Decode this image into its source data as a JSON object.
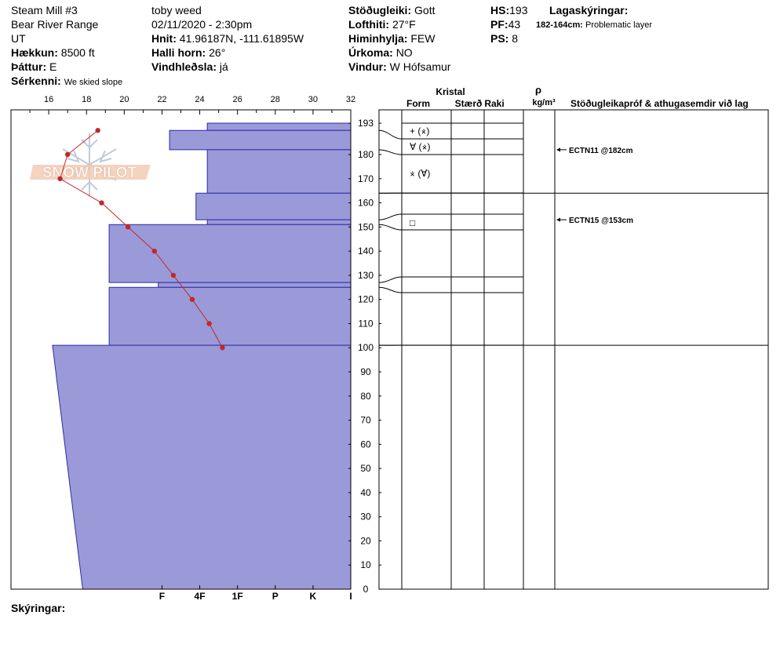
{
  "header": {
    "location": "Steam Mill #3",
    "range": "Bear River Range",
    "state": "UT",
    "elevation_label": "Hækkun:",
    "elevation": "8500 ft",
    "aspect_label": "Þáttur:",
    "aspect": "E",
    "features_label": "Sérkenni:",
    "features": "We skied slope",
    "observer": "toby weed",
    "datetime": "02/11/2020 - 2:30pm",
    "coords_label": "Hnit:",
    "coords": "41.96187N, -111.61895W",
    "slope_label": "Halli horn:",
    "slope": "26°",
    "wind_loading_label": "Vindhleðsla:",
    "wind_loading": "já",
    "stability_label": "Stöðugleiki:",
    "stability": "Gott",
    "air_temp_label": "Lofthiti:",
    "air_temp": "27°F",
    "sky_label": "Himinhylja:",
    "sky": "FEW",
    "precip_label": "Úrkoma:",
    "precip": "NO",
    "wind_label": "Vindur:",
    "wind": "W Hófsamur",
    "hs_label": "HS:",
    "hs": "193",
    "pf_label": "PF:",
    "pf": "43",
    "ps_label": "PS:",
    "ps": "8",
    "layers_label": "Lagaskýringar:",
    "layer_note_range": "182-164cm:",
    "layer_note_text": "Problematic layer"
  },
  "watermark": "SNOW PILOT",
  "footer": {
    "notes_label": "Skýringar:"
  },
  "columns": {
    "crystal": "Kristal",
    "form": "Form",
    "size": "Stærð",
    "moisture": "Raki",
    "rho": "ρ",
    "density_unit": "kg/m³",
    "tests": "Stöðugleikapróf & athugasemdir við lag"
  },
  "chart_data": {
    "type": "snow-profile",
    "height_axis": {
      "min": 0,
      "max": 193,
      "ticks": [
        0,
        10,
        20,
        30,
        40,
        50,
        60,
        70,
        80,
        90,
        100,
        110,
        120,
        130,
        140,
        150,
        160,
        170,
        180,
        193
      ]
    },
    "temperature_axis": {
      "min": 14,
      "max": 32,
      "ticks": [
        16,
        18,
        20,
        22,
        24,
        26,
        28,
        30,
        32
      ]
    },
    "hardness_axis": {
      "labels": [
        "I",
        "K",
        "P",
        "1F",
        "4F",
        "F"
      ]
    },
    "hardness_layers": [
      {
        "top": 193,
        "bottom": 190,
        "hardness": 4.8
      },
      {
        "top": 190,
        "bottom": 182,
        "hardness": 5.8
      },
      {
        "top": 182,
        "bottom": 164,
        "hardness": 4.8
      },
      {
        "top": 164,
        "bottom": 153,
        "hardness": 5.1
      },
      {
        "top": 153,
        "bottom": 151,
        "hardness": 4.8
      },
      {
        "top": 151,
        "bottom": 127,
        "hardness": 7.4
      },
      {
        "top": 127,
        "bottom": 125,
        "hardness": 6.1
      },
      {
        "top": 125,
        "bottom": 101,
        "hardness": 7.4
      },
      {
        "top": 101,
        "bottom": 0,
        "hardness_top": 8.9,
        "hardness_bottom": 8.1
      }
    ],
    "temperature_profile": [
      {
        "height": 190,
        "temp": 18.6
      },
      {
        "height": 180,
        "temp": 17.0
      },
      {
        "height": 170,
        "temp": 16.6
      },
      {
        "height": 160,
        "temp": 18.8
      },
      {
        "height": 150,
        "temp": 20.2
      },
      {
        "height": 140,
        "temp": 21.6
      },
      {
        "height": 130,
        "temp": 22.6
      },
      {
        "height": 120,
        "temp": 23.6
      },
      {
        "height": 110,
        "temp": 24.5
      },
      {
        "height": 100,
        "temp": 25.2
      }
    ],
    "layer_boundaries": [
      190,
      182,
      164,
      153,
      151,
      127,
      125,
      101
    ],
    "grain_forms": [
      {
        "height": 190.5,
        "text": "+ (⨰)"
      },
      {
        "height": 184,
        "text": "∀ (⨰)"
      },
      {
        "height": 173,
        "text": "⨰ (∀)"
      },
      {
        "height": 152,
        "text": "□"
      }
    ],
    "stability_tests": [
      {
        "height": 182,
        "label": "ECTN11 @182cm"
      },
      {
        "height": 153,
        "label": "ECTN15 @153cm"
      }
    ]
  }
}
